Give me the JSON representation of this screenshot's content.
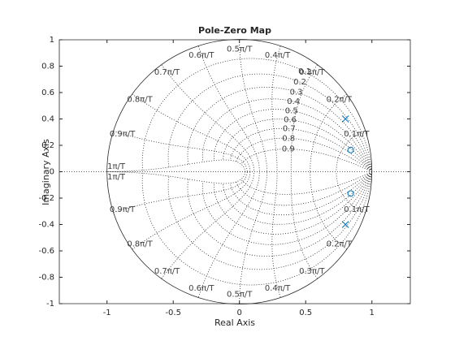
{
  "chart_data": {
    "type": "pzmap",
    "title": "Pole-Zero Map",
    "x_label": "Real Axis",
    "y_label": "Imaginary Axis",
    "xlim": [
      -1.36,
      1.29
    ],
    "ylim": [
      -1,
      1
    ],
    "xticks": [
      -1,
      -0.5,
      0,
      0.5,
      1
    ],
    "yticks": [
      -1,
      -0.8,
      -0.6,
      -0.4,
      -0.2,
      0,
      0.2,
      0.4,
      0.6,
      0.8,
      1
    ],
    "grid": true,
    "damping": [
      0.1,
      0.2,
      0.3,
      0.4,
      0.5,
      0.6,
      0.7,
      0.8,
      0.9
    ],
    "natural_frequency": [
      {
        "value": 0.1,
        "label": "0.1π/T"
      },
      {
        "value": 0.2,
        "label": "0.2π/T"
      },
      {
        "value": 0.3,
        "label": "0.3π/T"
      },
      {
        "value": 0.4,
        "label": "0.4π/T"
      },
      {
        "value": 0.5,
        "label": "0.5π/T"
      },
      {
        "value": 0.6,
        "label": "0.6π/T"
      },
      {
        "value": 0.7,
        "label": "0.7π/T"
      },
      {
        "value": 0.8,
        "label": "0.8π/T"
      },
      {
        "value": 0.9,
        "label": "0.9π/T"
      },
      {
        "value": 1,
        "label": "1π/T"
      }
    ],
    "series": [
      {
        "marker": "x",
        "color": "#0072bd",
        "x": [
          0.8,
          0.8
        ],
        "values": [
          0.4,
          -0.4
        ]
      },
      {
        "marker": "o",
        "color": "#0072bd",
        "x": [
          0.84,
          0.84
        ],
        "values": [
          0.165,
          -0.165
        ]
      }
    ]
  }
}
